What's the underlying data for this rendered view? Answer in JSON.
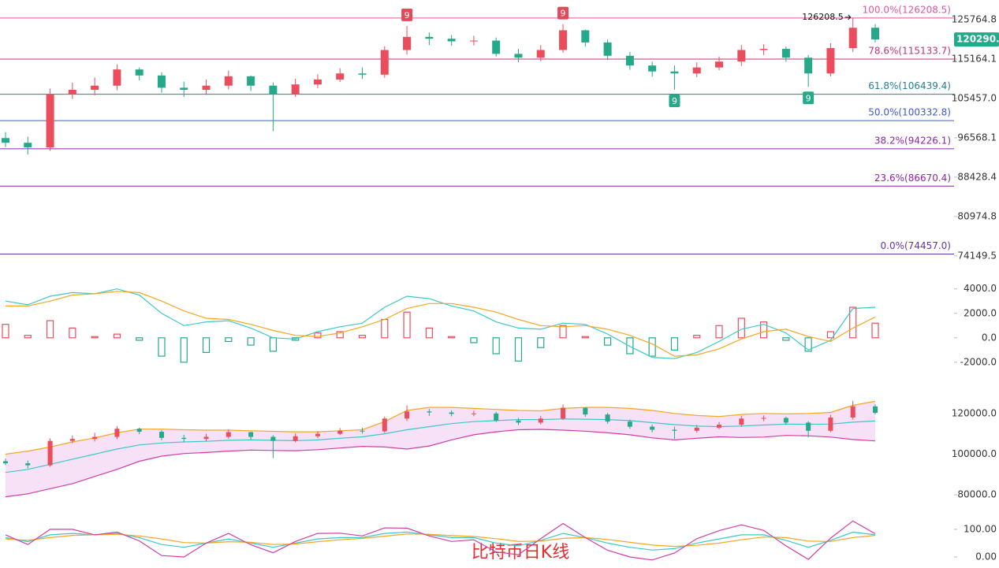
{
  "chart_data": [
    {
      "type": "candlestick",
      "log": true,
      "ylim": [
        72200,
        131400
      ],
      "yticks": [
        125764.8,
        115164.1,
        {
          "value": 105457,
          "label": "105457.0"
        },
        96568.1,
        88428.4,
        80974.8,
        74149.5
      ],
      "up_color": "#eb4d5c",
      "down_color": "#26a88a",
      "open": [
        96500,
        95500,
        94500,
        106500,
        107500,
        108500,
        112500,
        111000,
        108000,
        107500,
        108500,
        110800,
        108500,
        106500,
        108800,
        110000,
        111500,
        111200,
        117500,
        121000,
        120500,
        119800,
        120000,
        116500,
        115500,
        117500,
        122800,
        119500,
        116000,
        113500,
        112000,
        111500,
        113000,
        114500,
        117500,
        117800,
        115500,
        111500,
        118000,
        123500
      ],
      "high": [
        97800,
        96800,
        107800,
        109200,
        110500,
        113800,
        113000,
        111800,
        109500,
        110000,
        112200,
        111000,
        109300,
        110200,
        111300,
        112800,
        113000,
        118500,
        124000,
        122200,
        121500,
        121300,
        120800,
        117800,
        118800,
        124500,
        123000,
        120300,
        117000,
        114500,
        113500,
        114300,
        115800,
        118800,
        119000,
        118400,
        116200,
        119300,
        126208.5,
        124500
      ],
      "low": [
        94600,
        93000,
        93800,
        105300,
        106200,
        107400,
        109800,
        106800,
        105800,
        106300,
        107600,
        107200,
        98000,
        105800,
        107900,
        109400,
        110100,
        110400,
        116300,
        118800,
        118600,
        118700,
        115800,
        114300,
        114600,
        116800,
        118400,
        114900,
        112400,
        110700,
        107500,
        110600,
        112300,
        113400,
        116200,
        114400,
        108200,
        110800,
        117000,
        119500
      ],
      "close": [
        95500,
        94500,
        106500,
        107500,
        108500,
        112500,
        111000,
        108000,
        107500,
        108500,
        110800,
        108500,
        106500,
        108800,
        110000,
        111500,
        111200,
        117500,
        121000,
        120500,
        119800,
        120000,
        116500,
        115500,
        117500,
        122800,
        119500,
        116000,
        113500,
        112000,
        111500,
        113000,
        114500,
        117500,
        117800,
        115500,
        111500,
        118000,
        123500,
        120290.9
      ],
      "last_price": 120290.9,
      "last_price_color": "#26a88a",
      "fib_levels": [
        {
          "value": 126208.5,
          "label": "100.0%(126208.5)",
          "color": "#e0559e"
        },
        {
          "value": 115133.7,
          "label": "78.6%(115133.7)",
          "color": "#c2337f"
        },
        {
          "value": 106439.4,
          "label": "61.8%(106439.4)",
          "color": "#2a7f8f"
        },
        {
          "value": 100332.8,
          "label": "50.0%(100332.8)",
          "color": "#3d5ad0"
        },
        {
          "value": 94226.1,
          "label": "38.2%(94226.1)",
          "color": "#8e24aa"
        },
        {
          "value": 86670.4,
          "label": "23.6%(86670.4)",
          "color": "#8e24aa"
        },
        {
          "value": 74457.0,
          "label": "0.0%(74457.0)",
          "color": "#5e35b1"
        }
      ],
      "setup_marks": [
        {
          "label": "9",
          "candle": 18,
          "position": "above",
          "color": "#e04a59"
        },
        {
          "label": "9",
          "candle": 25,
          "position": "above",
          "color": "#e04a59"
        },
        {
          "label": "9",
          "candle": 30,
          "position": "below",
          "color": "#26a88a"
        },
        {
          "label": "9",
          "candle": 36,
          "position": "below",
          "color": "#26a88a"
        }
      ],
      "watermark": "比特币日K线"
    },
    {
      "type": "macd",
      "ylim": [
        -3300,
        5400
      ],
      "yticks": [
        {
          "value": 4000,
          "label": "4000.0"
        },
        {
          "value": 2000,
          "label": "2000.0"
        },
        {
          "value": 0,
          "label": "0.0"
        },
        {
          "value": -2000,
          "label": "-2000.0"
        }
      ],
      "up_color": "#eb4d5c",
      "down_color": "#26a88a",
      "histogram": [
        1100,
        200,
        1400,
        800,
        100,
        300,
        -200,
        -1500,
        -2000,
        -1200,
        -300,
        -600,
        -1100,
        -200,
        400,
        500,
        200,
        1500,
        2100,
        800,
        100,
        -400,
        -1300,
        -1900,
        -800,
        1000,
        100,
        -600,
        -1300,
        -1500,
        -1000,
        200,
        1000,
        1600,
        1300,
        -200,
        -1100,
        500,
        2500,
        1200
      ],
      "lines": [
        {
          "color": "#3cc8c8",
          "values": [
            3000,
            2700,
            3400,
            3700,
            3600,
            4000,
            3500,
            2000,
            1000,
            1300,
            1400,
            800,
            0,
            -100,
            500,
            900,
            1200,
            2500,
            3400,
            3200,
            2600,
            2200,
            1300,
            800,
            700,
            1200,
            1100,
            300,
            -700,
            -1600,
            -1700,
            -1200,
            -300,
            700,
            1100,
            400,
            -1000,
            -200,
            2400,
            2500
          ]
        },
        {
          "color": "#f5a623",
          "values": [
            2600,
            2600,
            3000,
            3500,
            3600,
            3800,
            3700,
            3000,
            2200,
            1600,
            1500,
            1100,
            600,
            200,
            100,
            400,
            900,
            1500,
            2400,
            2800,
            2800,
            2500,
            2100,
            1500,
            1000,
            900,
            1000,
            700,
            200,
            -500,
            -1500,
            -1400,
            -900,
            -100,
            500,
            700,
            100,
            -300,
            800,
            1700
          ]
        }
      ]
    },
    {
      "type": "bollinger",
      "ylim": [
        71500,
        133500
      ],
      "yticks": [
        {
          "value": 120000,
          "label": "120000.0"
        },
        {
          "value": 100000,
          "label": "100000.0"
        },
        {
          "value": 80000,
          "label": "80000.0"
        }
      ],
      "band_fill": "#f7e1f7",
      "lines": [
        {
          "color": "#f5a623",
          "values": [
            100000,
            101500,
            103500,
            106000,
            108000,
            110500,
            112300,
            112300,
            112000,
            111800,
            111800,
            111500,
            111200,
            111000,
            111000,
            111500,
            112000,
            116000,
            121500,
            123000,
            123000,
            122500,
            122000,
            121500,
            121300,
            122500,
            123000,
            123000,
            122500,
            121500,
            120000,
            119000,
            118500,
            119500,
            120000,
            119800,
            120000,
            120500,
            124000,
            126000
          ]
        },
        {
          "color": "#3cc8c8",
          "values": [
            91000,
            92500,
            95000,
            97500,
            100000,
            102500,
            104500,
            105500,
            106000,
            106300,
            106800,
            107000,
            106800,
            106600,
            107000,
            107800,
            108500,
            110000,
            112000,
            113500,
            115000,
            116000,
            116500,
            117000,
            117000,
            117300,
            117200,
            117000,
            116500,
            115500,
            114500,
            113800,
            113500,
            113800,
            114300,
            114800,
            114700,
            114800,
            115700,
            116300
          ]
        },
        {
          "color": "#d23ca8",
          "values": [
            79000,
            80500,
            83000,
            85500,
            89000,
            92500,
            96500,
            99000,
            100300,
            100800,
            101500,
            102000,
            101800,
            101700,
            102200,
            103000,
            103800,
            103500,
            102500,
            104000,
            107000,
            109500,
            111000,
            112000,
            112200,
            111800,
            111300,
            110500,
            109500,
            108000,
            107000,
            107800,
            108500,
            108200,
            108400,
            109200,
            109000,
            108400,
            107200,
            106500
          ]
        }
      ]
    },
    {
      "type": "kdj",
      "ylim": [
        -40,
        148
      ],
      "yticks": [
        {
          "value": 100,
          "label": "100.00"
        },
        {
          "value": 0,
          "label": "0.00"
        }
      ],
      "lines": [
        {
          "color": "#3cc8c8",
          "values": [
            70,
            55,
            80,
            85,
            80,
            85,
            70,
            45,
            35,
            50,
            65,
            50,
            35,
            50,
            65,
            70,
            70,
            85,
            90,
            80,
            70,
            70,
            50,
            40,
            60,
            85,
            70,
            50,
            35,
            25,
            30,
            50,
            65,
            80,
            80,
            60,
            35,
            60,
            90,
            80
          ]
        },
        {
          "color": "#f5a623",
          "values": [
            65,
            60,
            70,
            78,
            80,
            82,
            76,
            65,
            52,
            50,
            55,
            53,
            45,
            47,
            55,
            62,
            67,
            75,
            83,
            82,
            77,
            74,
            66,
            56,
            57,
            67,
            70,
            63,
            53,
            43,
            38,
            42,
            50,
            62,
            72,
            70,
            57,
            56,
            70,
            78
          ]
        },
        {
          "color": "#d23ca8",
          "values": [
            80,
            45,
            100,
            100,
            80,
            90,
            58,
            5,
            0,
            50,
            85,
            44,
            15,
            56,
            85,
            86,
            76,
            105,
            104,
            76,
            56,
            62,
            18,
            8,
            66,
            121,
            70,
            24,
            0,
            -11,
            14,
            66,
            95,
            116,
            96,
            40,
            -9,
            68,
            130,
            84
          ]
        }
      ]
    }
  ]
}
